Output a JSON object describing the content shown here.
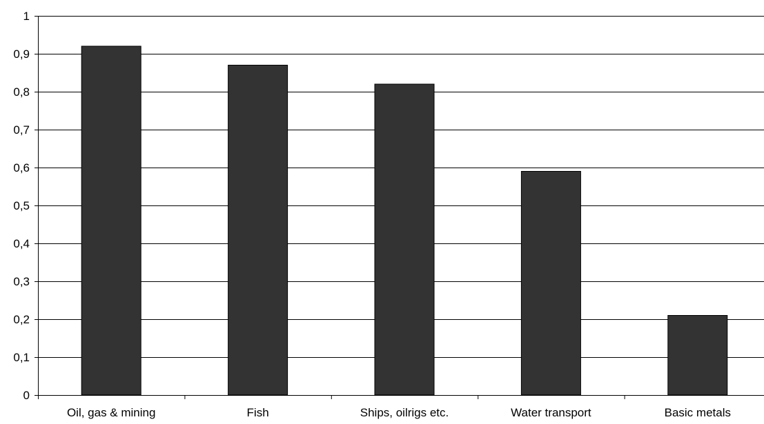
{
  "chart_data": {
    "type": "bar",
    "title": "",
    "xlabel": "",
    "ylabel": "",
    "categories": [
      "Oil, gas & mining",
      "Fish",
      "Ships, oilrigs etc.",
      "Water transport",
      "Basic metals"
    ],
    "values": [
      0.92,
      0.87,
      0.82,
      0.59,
      0.21
    ],
    "ylim": [
      0,
      1
    ],
    "yticks": [
      0,
      0.1,
      0.2,
      0.3,
      0.4,
      0.5,
      0.6,
      0.7,
      0.8,
      0.9,
      1
    ],
    "ytick_labels": [
      "0",
      "0,1",
      "0,2",
      "0,3",
      "0,4",
      "0,5",
      "0,6",
      "0,7",
      "0,8",
      "0,9",
      "1"
    ],
    "grid": true,
    "legend": "none",
    "colors": {
      "bar_fill": "#333333",
      "bar_stroke": "#000000",
      "grid": "#000000",
      "axis": "#000000",
      "background": "#ffffff"
    }
  }
}
